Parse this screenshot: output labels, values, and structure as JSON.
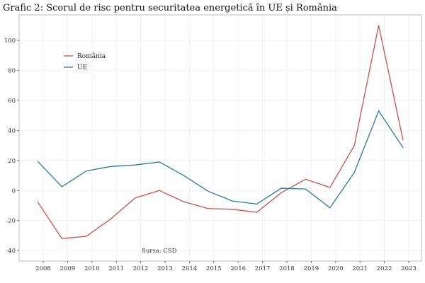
{
  "chart_data": {
    "type": "line",
    "title": "Grafic 2: Scorul de risc pentru securitatea energetică în UE și România",
    "xlabel": "",
    "ylabel": "",
    "categories": [
      "2008",
      "2009",
      "2010",
      "2011",
      "2012",
      "2013",
      "2014",
      "2015",
      "2016",
      "2017",
      "2018",
      "2019",
      "2020",
      "2021",
      "2022",
      "2023"
    ],
    "yticks": [
      -40,
      -20,
      0,
      20,
      40,
      60,
      80,
      100
    ],
    "ylim": [
      -47,
      117
    ],
    "grid": true,
    "legend_position": "top-left",
    "annotation": "Sursa: CSD",
    "series": [
      {
        "name": "România",
        "color": "#c9514f",
        "values": [
          -7.5,
          -32,
          -30.5,
          -19,
          -5,
          0,
          -7.5,
          -12,
          -12.5,
          -14.5,
          -1.5,
          7.5,
          2,
          30,
          110,
          33.5
        ]
      },
      {
        "name": "UE",
        "color": "#2a7a99",
        "values": [
          19.5,
          2.5,
          13,
          16,
          17,
          19,
          10,
          -0.5,
          -7,
          -9,
          1.5,
          1,
          -11.5,
          12,
          53,
          28.5
        ]
      }
    ]
  }
}
